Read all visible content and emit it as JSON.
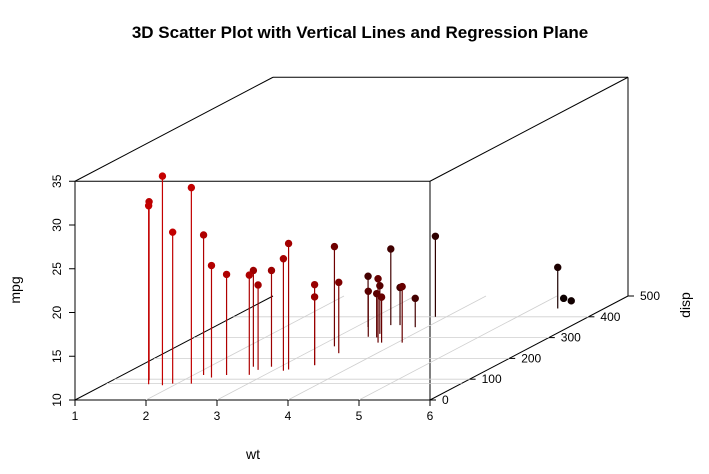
{
  "chart_data": {
    "type": "scatter3d",
    "title": "3D Scatter Plot with Vertical Lines and Regression Plane",
    "xlabel": "wt",
    "ylabel": "disp",
    "zlabel": "mpg",
    "xlim": [
      1,
      6
    ],
    "ylim": [
      0,
      500
    ],
    "zlim": [
      10,
      35
    ],
    "x_ticks": [
      "1",
      "2",
      "3",
      "4",
      "5",
      "6"
    ],
    "y_ticks": [
      "0",
      "100",
      "200",
      "300",
      "400",
      "500"
    ],
    "z_ticks": [
      "10",
      "15",
      "20",
      "25",
      "30",
      "35"
    ],
    "vertical_lines": true,
    "regression_plane": true,
    "color_gradient": [
      "#e60000",
      "#000000"
    ],
    "points": [
      {
        "wt": 2.2,
        "disp": 78.7,
        "mpg": 32.4
      },
      {
        "wt": 1.615,
        "disp": 75.7,
        "mpg": 30.4
      },
      {
        "wt": 1.835,
        "disp": 71.1,
        "mpg": 33.9
      },
      {
        "wt": 1.513,
        "disp": 95.1,
        "mpg": 30.4
      },
      {
        "wt": 2.14,
        "disp": 120.3,
        "mpg": 26.0
      },
      {
        "wt": 1.935,
        "disp": 79.0,
        "mpg": 27.3
      },
      {
        "wt": 2.32,
        "disp": 108.0,
        "mpg": 22.8
      },
      {
        "wt": 2.465,
        "disp": 120.1,
        "mpg": 21.5
      },
      {
        "wt": 2.62,
        "disp": 160.0,
        "mpg": 21.0
      },
      {
        "wt": 2.875,
        "disp": 160.0,
        "mpg": 21.0
      },
      {
        "wt": 2.77,
        "disp": 145.0,
        "mpg": 19.7
      },
      {
        "wt": 3.19,
        "disp": 146.7,
        "mpg": 24.4
      },
      {
        "wt": 3.15,
        "disp": 140.8,
        "mpg": 22.8
      },
      {
        "wt": 2.78,
        "disp": 121.0,
        "mpg": 21.4
      },
      {
        "wt": 3.215,
        "disp": 258.0,
        "mpg": 21.4
      },
      {
        "wt": 3.44,
        "disp": 167.6,
        "mpg": 19.2
      },
      {
        "wt": 3.44,
        "disp": 167.6,
        "mpg": 17.8
      },
      {
        "wt": 3.46,
        "disp": 225.0,
        "mpg": 18.1
      },
      {
        "wt": 3.44,
        "disp": 360.0,
        "mpg": 18.7
      },
      {
        "wt": 3.52,
        "disp": 318.0,
        "mpg": 15.5
      },
      {
        "wt": 3.435,
        "disp": 304.0,
        "mpg": 15.2
      },
      {
        "wt": 3.57,
        "disp": 360.0,
        "mpg": 14.3
      },
      {
        "wt": 3.84,
        "disp": 350.0,
        "mpg": 13.3
      },
      {
        "wt": 3.845,
        "disp": 400.0,
        "mpg": 19.2
      },
      {
        "wt": 3.57,
        "disp": 301.0,
        "mpg": 15.0
      },
      {
        "wt": 3.17,
        "disp": 351.0,
        "mpg": 15.8
      },
      {
        "wt": 4.07,
        "disp": 275.8,
        "mpg": 16.4
      },
      {
        "wt": 3.73,
        "disp": 275.8,
        "mpg": 17.3
      },
      {
        "wt": 3.78,
        "disp": 275.8,
        "mpg": 15.2
      },
      {
        "wt": 5.25,
        "disp": 472.0,
        "mpg": 10.4
      },
      {
        "wt": 5.424,
        "disp": 460.0,
        "mpg": 10.4
      },
      {
        "wt": 5.345,
        "disp": 440.0,
        "mpg": 14.7
      }
    ]
  }
}
